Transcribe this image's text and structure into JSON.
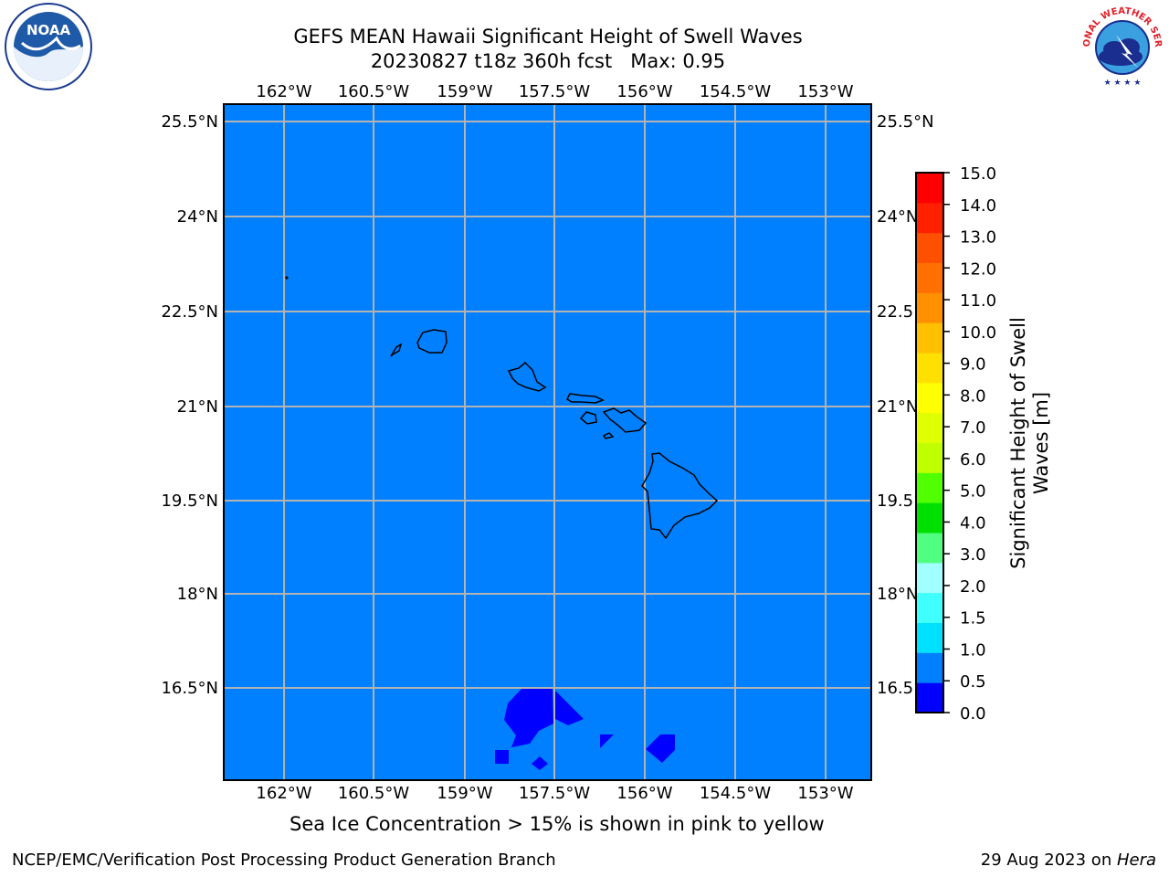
{
  "title": {
    "line1": "GEFS MEAN Hawaii Significant Height of Swell Waves",
    "line2": "20230827 t18z 360h fcst   Max: 0.95"
  },
  "logos": {
    "left": {
      "icon": "noaa-logo",
      "text": "NOAA"
    },
    "right": {
      "icon": "national-weather-service-logo",
      "text": "NATIONAL WEATHER SERVICE"
    }
  },
  "map": {
    "lon_labels": [
      "162°W",
      "160.5°W",
      "159°W",
      "157.5°W",
      "156°W",
      "154.5°W",
      "153°W"
    ],
    "lat_labels": [
      "25.5°N",
      "24°N",
      "22.5°N",
      "21°N",
      "19.5°N",
      "18°N",
      "16.5°N"
    ],
    "background_color": "#0080ff",
    "low_swell_color": "#0000ff",
    "grid_color": "#b3b3b3"
  },
  "colorbar": {
    "ticks": [
      "0.0",
      "0.5",
      "1.0",
      "1.5",
      "2.0",
      "3.0",
      "4.0",
      "5.0",
      "6.0",
      "7.0",
      "8.0",
      "9.0",
      "10.0",
      "11.0",
      "12.0",
      "13.0",
      "14.0",
      "15.0"
    ],
    "colors": [
      "#0000ff",
      "#0080ff",
      "#00e0ff",
      "#40ffff",
      "#a0ffff",
      "#50ff80",
      "#00e000",
      "#50ff00",
      "#c0ff00",
      "#e0ff00",
      "#ffff00",
      "#ffe000",
      "#ffc000",
      "#ff9000",
      "#ff7000",
      "#ff5000",
      "#ff2000",
      "#ff0000"
    ],
    "label": "Significant Height of Swell Waves [m]"
  },
  "note": "Sea Ice Concentration > 15% is shown in pink to yellow",
  "footer": {
    "left": "NCEP/EMC/Verification Post Processing Product Generation Branch",
    "right_prefix": "29 Aug 2023 on ",
    "right_host": "Hera"
  }
}
